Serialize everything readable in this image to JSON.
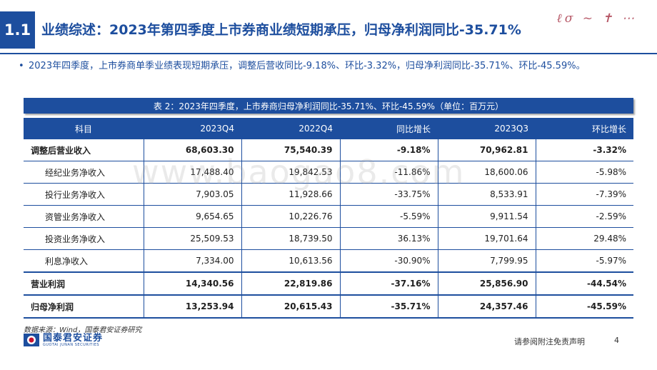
{
  "header": {
    "section_number": "1.1",
    "title": "业绩综述：2023年第四季度上市券商业绩短期承压，归母净利润同比-35.71%"
  },
  "summary": {
    "bullet": "•",
    "text": "2023年四季度，上市券商单季业绩表现短期承压，调整后营收同比-9.18%、环比-3.32%，归母净利润同比-35.71%、环比-45.59%。"
  },
  "table": {
    "caption": "表 2：2023年四季度，上市券商归母净利润同比-35.71%、环比-45.59%（单位：百万元）",
    "headers": [
      "科目",
      "2023Q4",
      "2022Q4",
      "同比增长",
      "2023Q3",
      "环比增长"
    ],
    "rows": [
      {
        "label": "调整后营业收入",
        "q4_2023": "68,603.30",
        "q4_2022": "75,540.39",
        "yoy": "-9.18%",
        "q3_2023": "70,962.81",
        "qoq": "-3.32%"
      },
      {
        "label": "经纪业务净收入",
        "q4_2023": "17,488.40",
        "q4_2022": "19,842.53",
        "yoy": "-11.86%",
        "q3_2023": "18,600.06",
        "qoq": "-5.98%"
      },
      {
        "label": "投行业务净收入",
        "q4_2023": "7,903.05",
        "q4_2022": "11,928.66",
        "yoy": "-33.75%",
        "q3_2023": "8,533.91",
        "qoq": "-7.39%"
      },
      {
        "label": "资管业务净收入",
        "q4_2023": "9,654.65",
        "q4_2022": "10,226.76",
        "yoy": "-5.59%",
        "q3_2023": "9,911.54",
        "qoq": "-2.59%"
      },
      {
        "label": "投资业务净收入",
        "q4_2023": "25,509.53",
        "q4_2022": "18,739.50",
        "yoy": "36.13%",
        "q3_2023": "19,701.64",
        "qoq": "29.48%"
      },
      {
        "label": "利息净收入",
        "q4_2023": "7,334.00",
        "q4_2022": "10,613.56",
        "yoy": "-30.90%",
        "q3_2023": "7,799.95",
        "qoq": "-5.97%"
      },
      {
        "label": "营业利润",
        "q4_2023": "14,340.56",
        "q4_2022": "22,819.86",
        "yoy": "-37.16%",
        "q3_2023": "25,856.90",
        "qoq": "-44.54%"
      },
      {
        "label": "归母净利润",
        "q4_2023": "13,253.94",
        "q4_2022": "20,615.43",
        "yoy": "-35.71%",
        "q3_2023": "24,357.46",
        "qoq": "-45.59%"
      }
    ]
  },
  "footer": {
    "source": "数据来源：Wind，国泰君安证券研究",
    "logo_cn": "国泰君安证券",
    "logo_en": "GUOTAI JUNAN SECURITIES",
    "disclaimer": "请参阅附注免责声明",
    "page_number": "4"
  },
  "watermark": "www.baogao8.com",
  "colors": {
    "brand_blue": "#1d4e9e",
    "logo_red": "#c8102e"
  }
}
